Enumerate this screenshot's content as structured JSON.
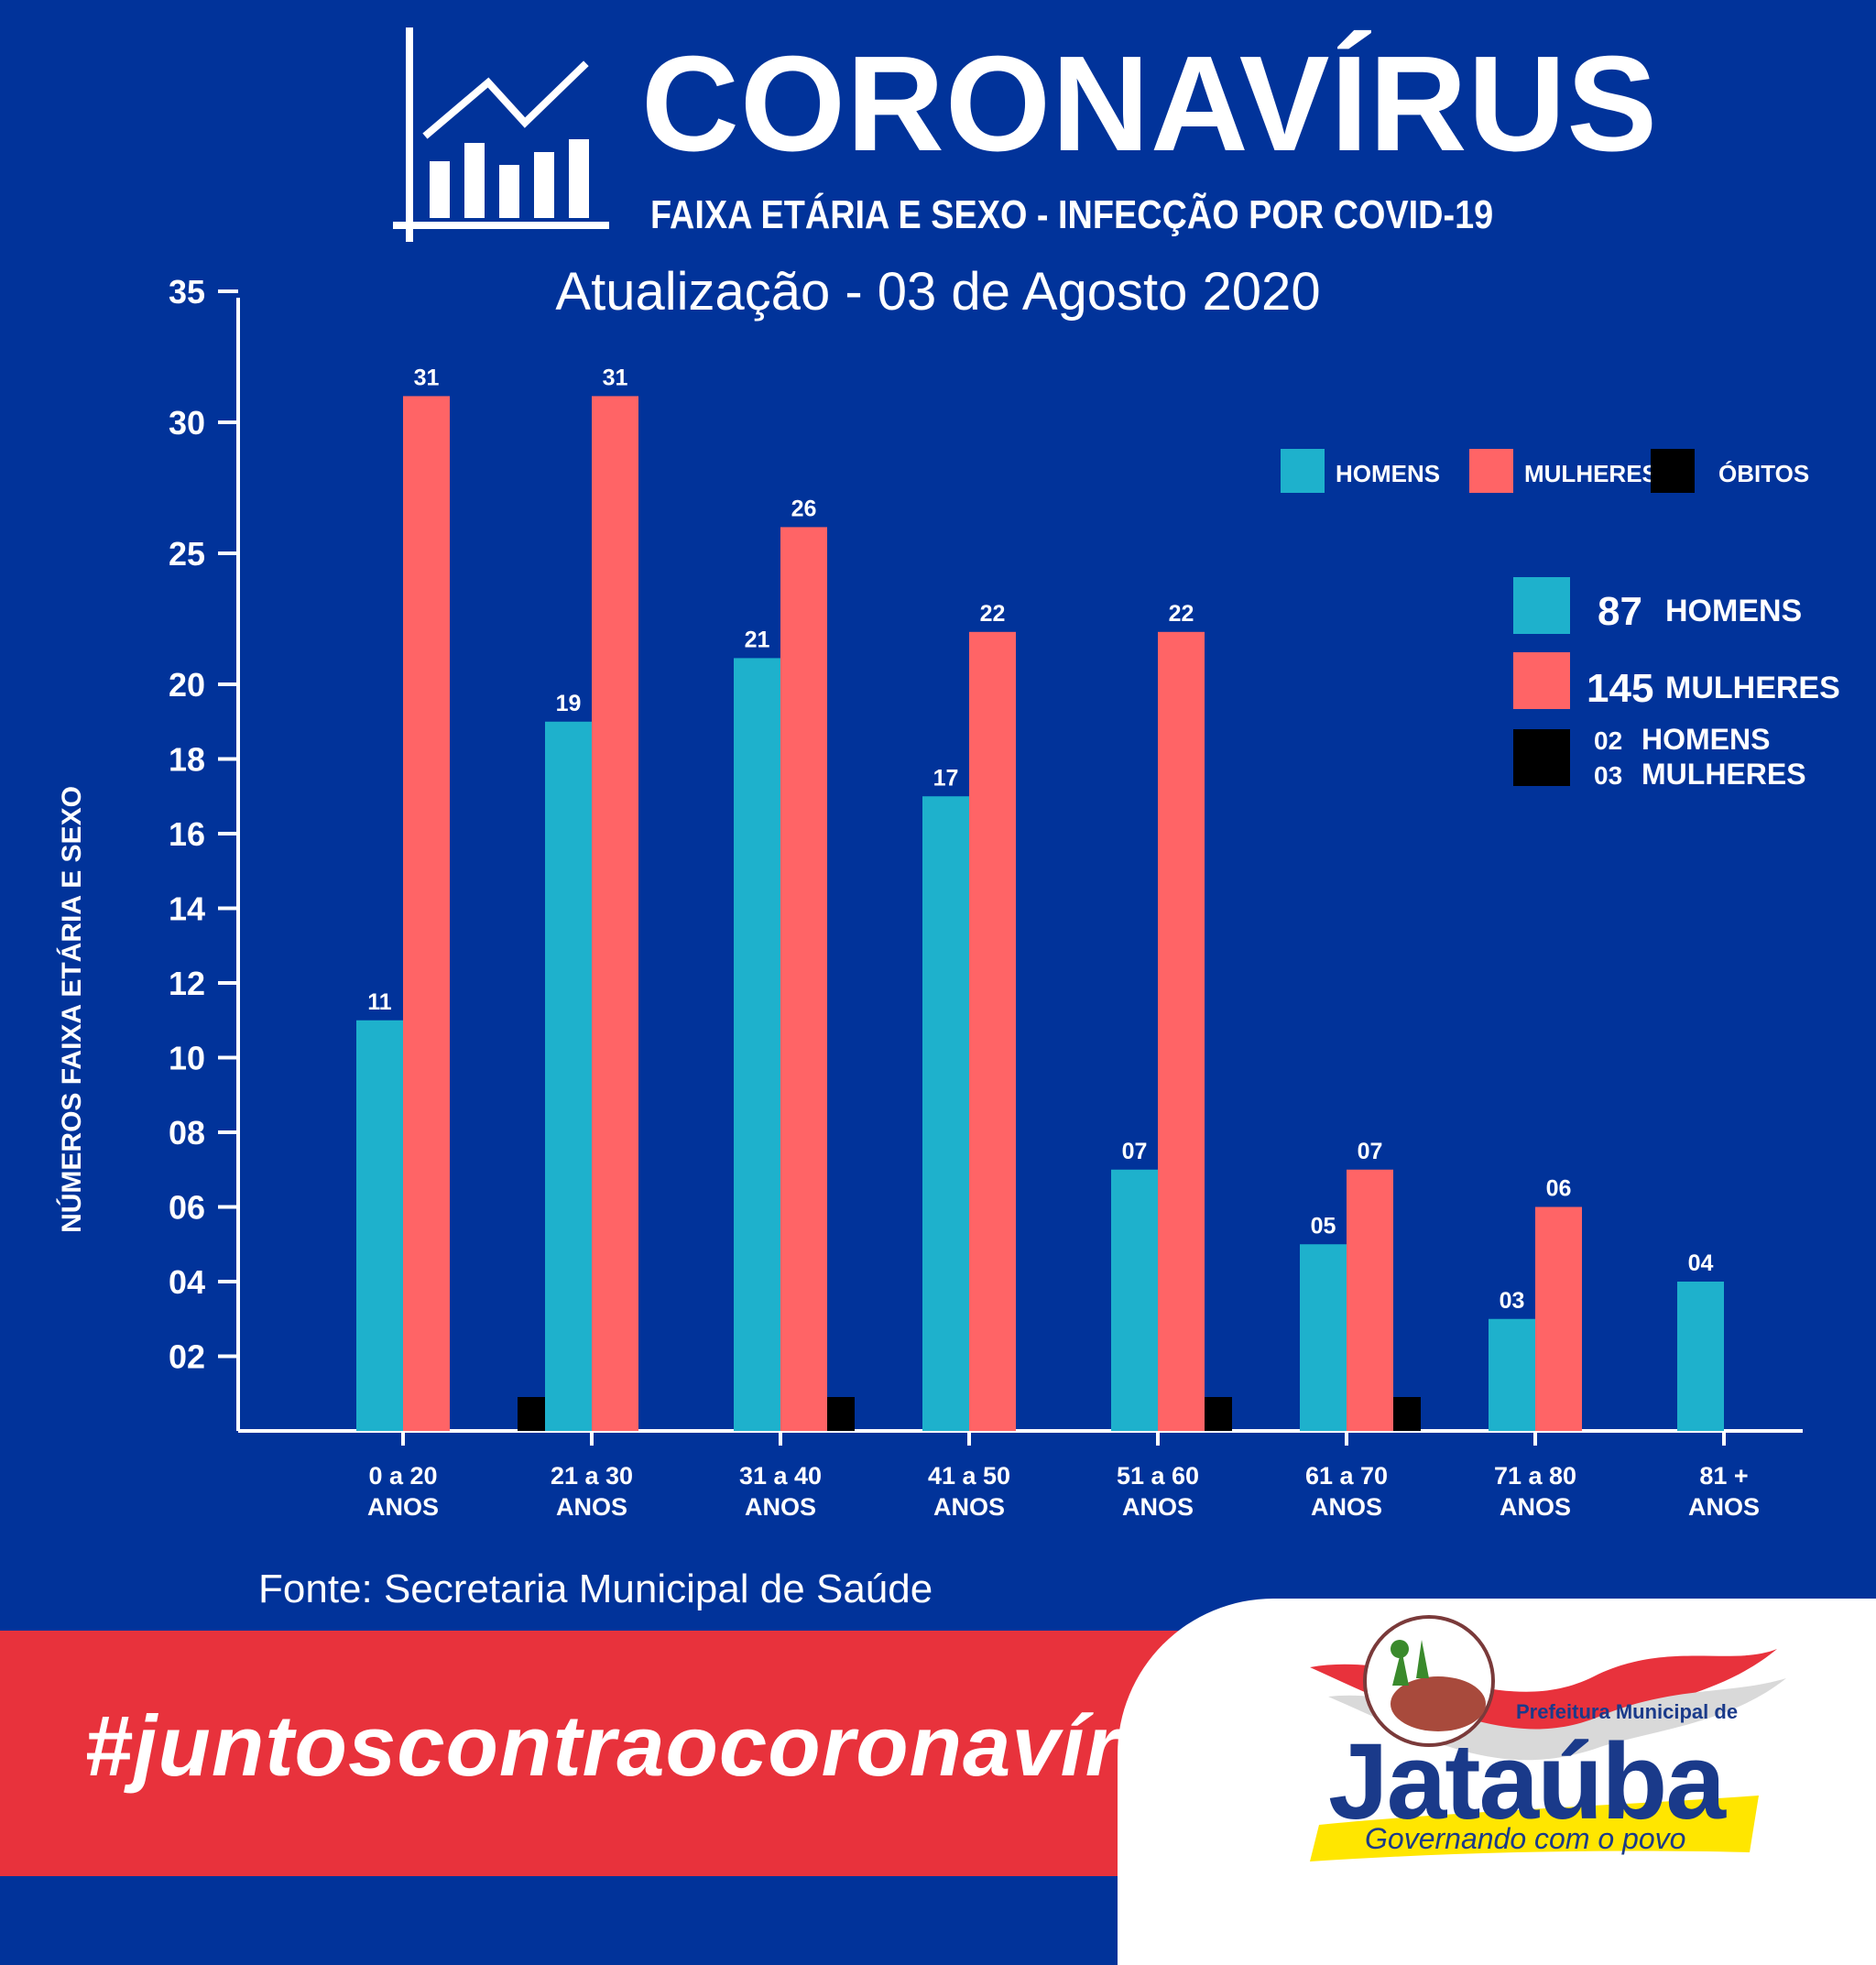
{
  "header": {
    "title": "CORONAVÍRUS",
    "subtitle": "FAIXA ETÁRIA E SEXO -  INFECÇÃO POR COVID-19",
    "update": "Atualização - 03 de Agosto 2020",
    "icon": "line-chart-icon"
  },
  "chart_data": {
    "type": "bar",
    "ylabel": "NÚMEROS FAIXA ETÁRIA E SEXO",
    "yticks": [
      "02",
      "04",
      "06",
      "08",
      "10",
      "12",
      "14",
      "16",
      "18",
      "20",
      "25",
      "30",
      "35"
    ],
    "categories": [
      [
        "0 a 20",
        "ANOS"
      ],
      [
        "21 a 30",
        "ANOS"
      ],
      [
        "31 a 40",
        "ANOS"
      ],
      [
        "41 a 50",
        "ANOS"
      ],
      [
        "51 a 60",
        "ANOS"
      ],
      [
        "61 a 70",
        "ANOS"
      ],
      [
        "71 a 80",
        "ANOS"
      ],
      [
        "81 +",
        "ANOS"
      ]
    ],
    "series": [
      {
        "name": "HOMENS",
        "color": "#1eb1cc",
        "values": [
          11,
          19,
          21,
          17,
          7,
          5,
          3,
          4
        ],
        "labels": [
          "11",
          "19",
          "21",
          "17",
          "07",
          "05",
          "03",
          "04"
        ]
      },
      {
        "name": "MULHERES",
        "color": "#ff6466",
        "values": [
          31,
          31,
          26,
          22,
          22,
          7,
          6,
          null
        ],
        "labels": [
          "31",
          "31",
          "26",
          "22",
          "22",
          "07",
          "06",
          ""
        ]
      },
      {
        "name": "ÓBITOS",
        "color": "#000000",
        "values": [
          0,
          1,
          1,
          0,
          1,
          1,
          0,
          0
        ]
      }
    ],
    "legend": {
      "placement": "top-right",
      "items": [
        "HOMENS",
        "MULHERES",
        "ÓBITOS"
      ]
    },
    "scale": "piecewise: 2-unit steps up to 20, 5-unit steps from 20 to 35"
  },
  "totals": {
    "men_count": "87",
    "men_label": "HOMENS",
    "women_count": "145",
    "women_label": "MULHERES",
    "deaths_men_count": "02",
    "deaths_men_label": "HOMENS",
    "deaths_women_count": "03",
    "deaths_women_label": "MULHERES"
  },
  "footer": {
    "source": "Fonte: Secretaria Municipal de Saúde",
    "hashtag": "#juntoscontraocoronavírus",
    "logo": {
      "prefix": "Prefeitura Municipal de",
      "name": "Jataúba",
      "slogan": "Governando com o povo"
    }
  }
}
